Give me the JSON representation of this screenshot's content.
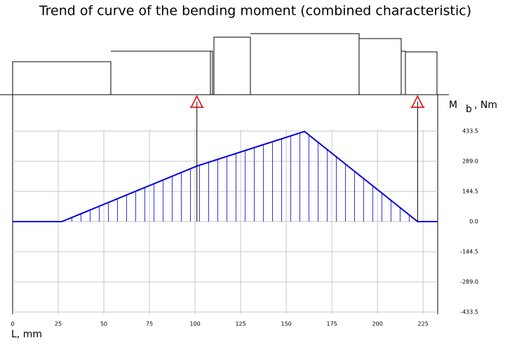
{
  "chart_data": {
    "type": "line",
    "title": "Trend of curve of the bending moment (combined characteristic)",
    "x_label": "L, mm",
    "y_label": {
      "main": "M",
      "sub": "b",
      "unit": ", Nm"
    },
    "x": [
      0,
      27,
      101,
      160,
      222,
      233
    ],
    "values": [
      0,
      0,
      266,
      432,
      0,
      0
    ],
    "color": "#0000dd",
    "supports": [
      101,
      222
    ],
    "support_color": "#dd0000",
    "xlim": [
      0,
      233
    ],
    "xticks": [
      0,
      25,
      50,
      75,
      100,
      125,
      150,
      175,
      200,
      225
    ],
    "ylim": [
      -433.5,
      433.5
    ],
    "yticks": [
      433.5,
      {
        "value": 289,
        "label": "289.0"
      },
      144.5,
      {
        "value": 0,
        "label": "0.0"
      },
      -144.5,
      {
        "value": -289,
        "label": "-289.0"
      },
      -433.5
    ],
    "grid": true
  }
}
